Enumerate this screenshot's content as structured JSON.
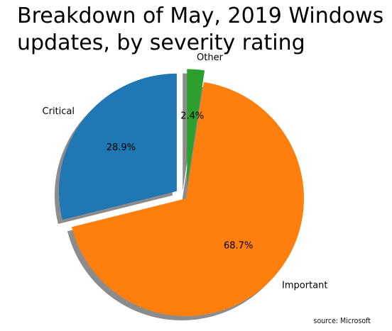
{
  "chart_data": {
    "type": "pie",
    "title": "Breakdown of May, 2019 Windows\nupdates, by severity rating",
    "slices": [
      {
        "label": "Critical",
        "value": 28.9,
        "pct_label": "28.9%",
        "color": "#1f77b4",
        "exploded": true
      },
      {
        "label": "Important",
        "value": 68.7,
        "pct_label": "68.7%",
        "color": "#ff7f0e",
        "exploded": false
      },
      {
        "label": "Other",
        "value": 2.4,
        "pct_label": "2.4%",
        "color": "#2ca02c",
        "exploded": true
      }
    ],
    "start_angle": 90,
    "direction": "counterclockwise",
    "shadow": true
  },
  "footer": {
    "source": "source: Microsoft"
  }
}
